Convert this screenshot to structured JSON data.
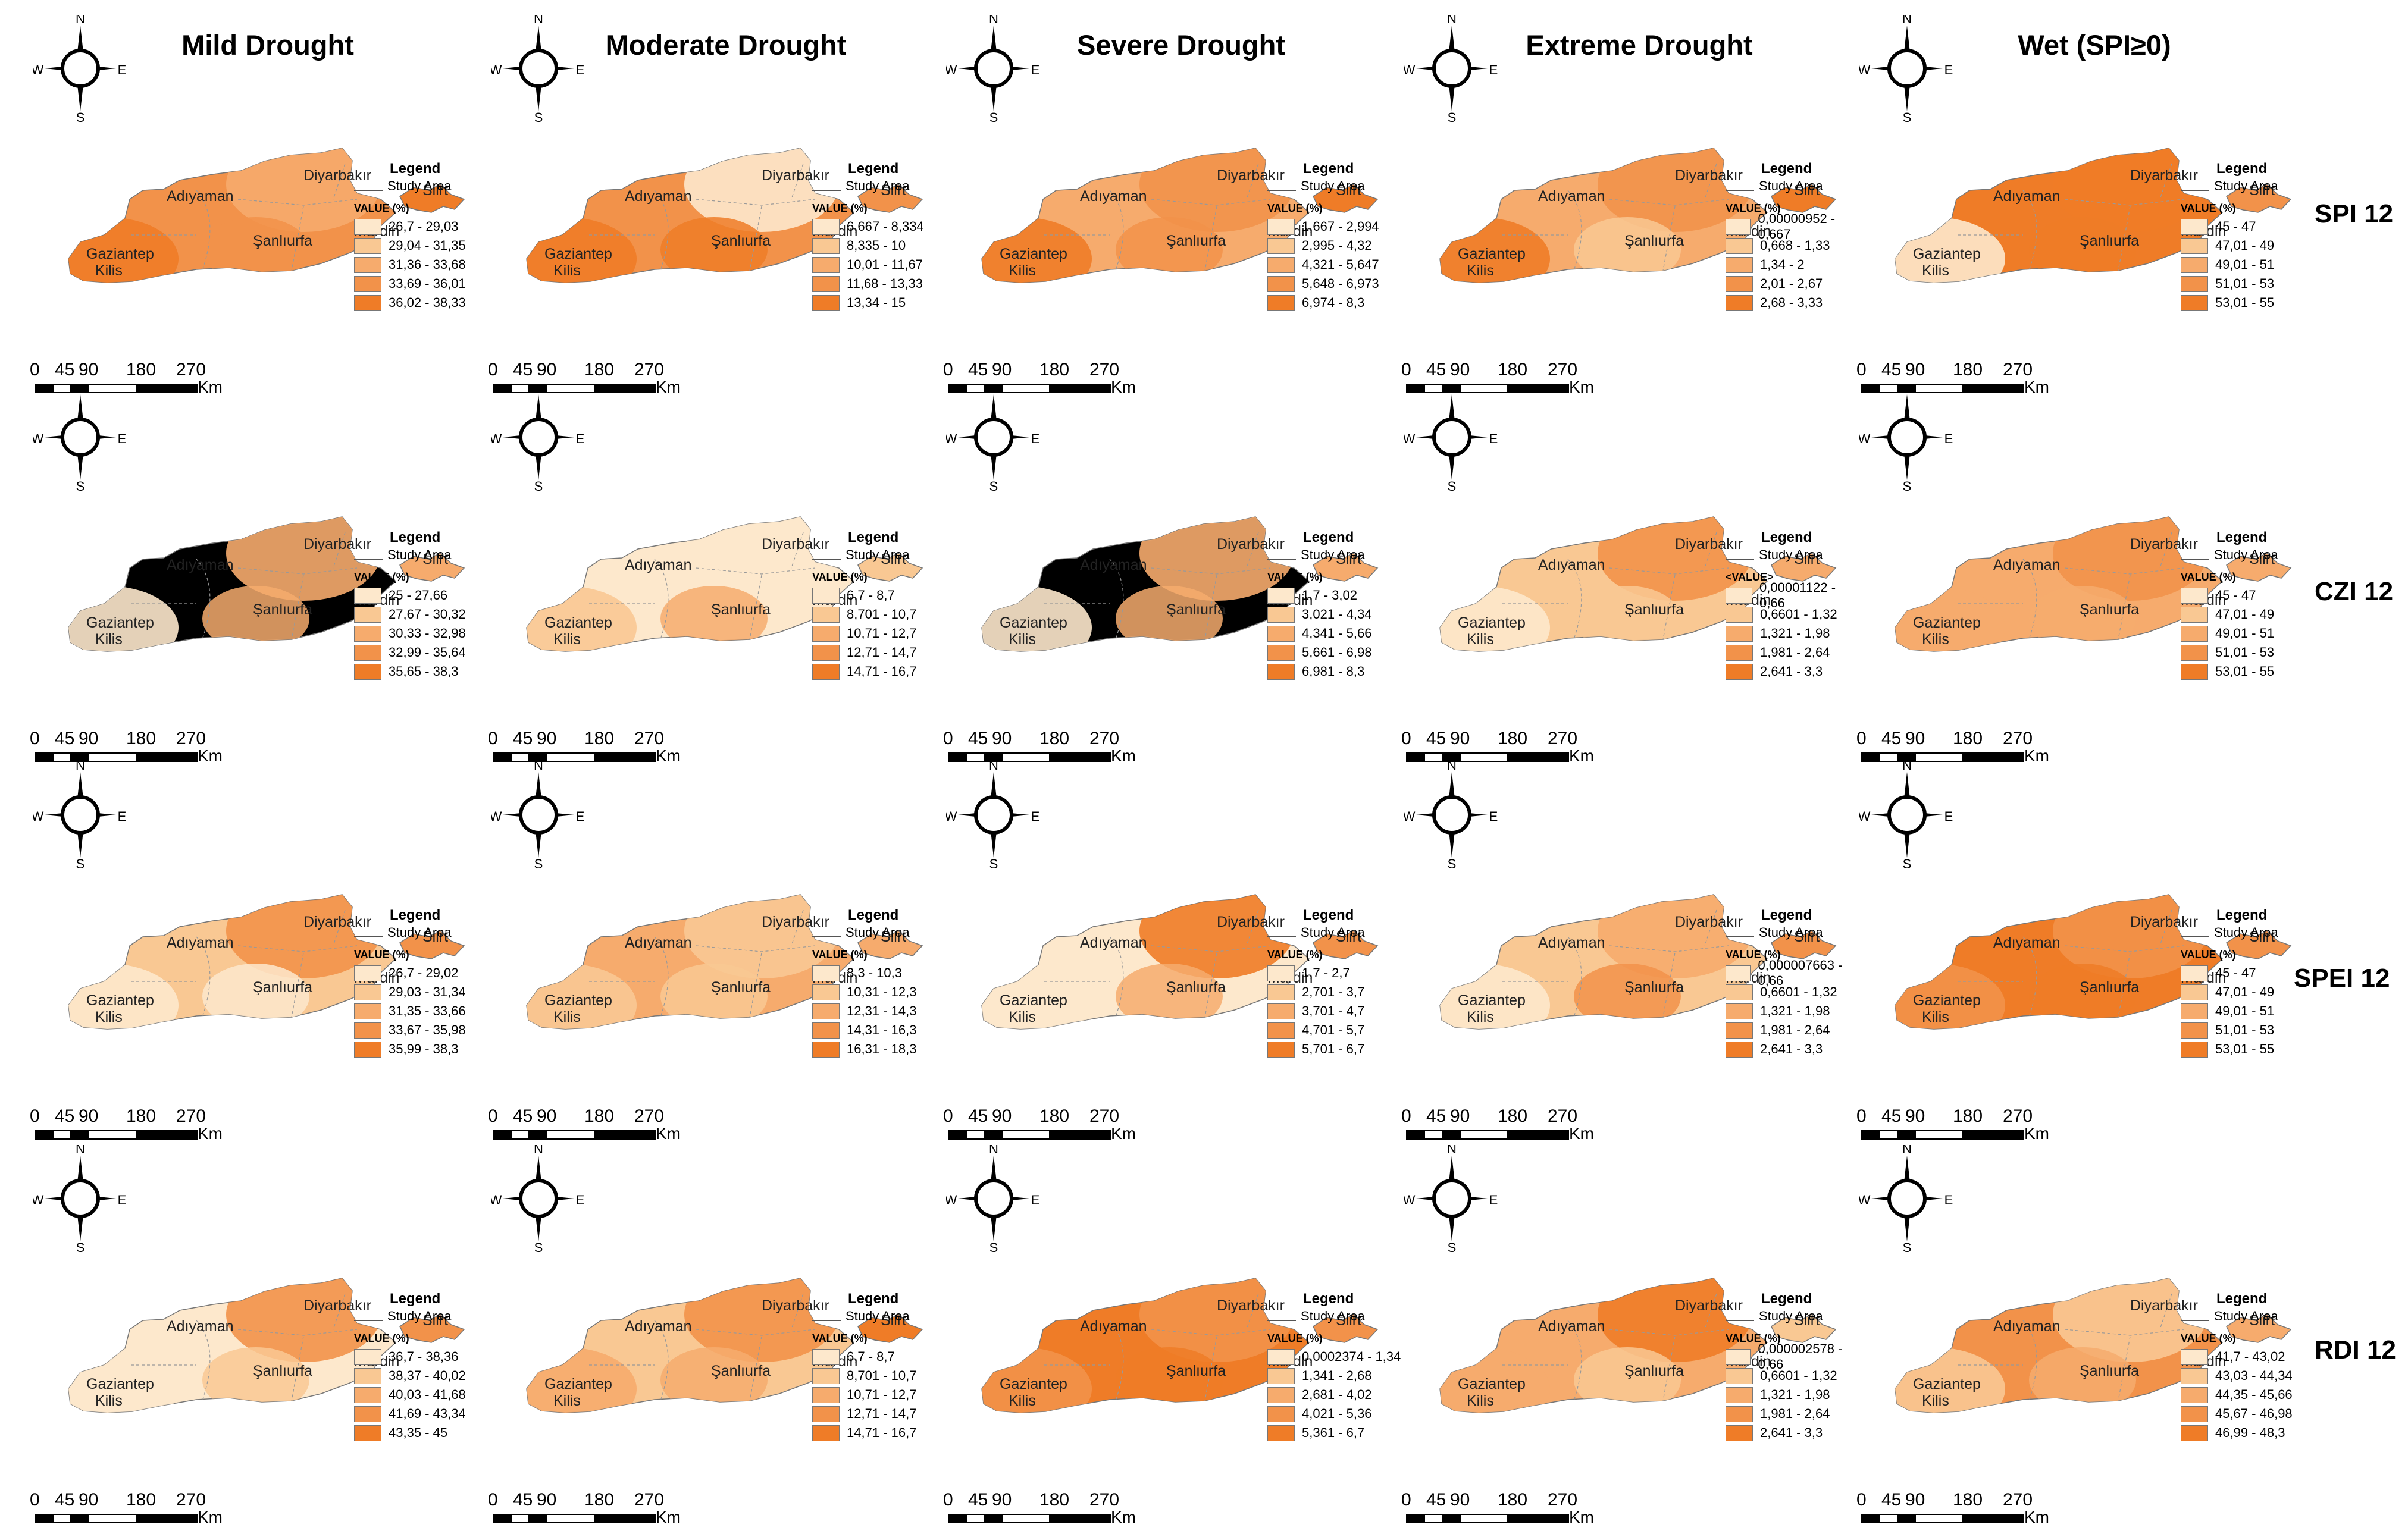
{
  "columns": [
    "Mild Drought",
    "Moderate Drought",
    "Severe Drought",
    "Extreme Drought",
    "Wet (SPI≥0)"
  ],
  "rows": [
    "SPI 12",
    "CZI 12",
    "SPEI 12",
    "RDI 12"
  ],
  "compass": {
    "n": "N",
    "s": "S",
    "e": "E",
    "w": "W"
  },
  "city_labels": [
    "Adıyaman",
    "Diyarbakır",
    "Siirt",
    "Gaziantep",
    "Kilis",
    "Şanlıurfa",
    "Mardin"
  ],
  "legend": {
    "title": "Legend",
    "study_area": "Study Area",
    "value_title": "VALUE (%)"
  },
  "scale_bar": {
    "ticks": [
      "0",
      "45",
      "90",
      "180",
      "270"
    ],
    "unit": "Km"
  },
  "colors": {
    "class_1": "#fde8cc",
    "class_2": "#f9c893",
    "class_3": "#f6ab6d",
    "class_4": "#f2924a",
    "class_5": "#ef7c27"
  },
  "panels": [
    {
      "row": "SPI 12",
      "column": "Mild Drought",
      "classes": [
        "26,7 - 29,03",
        "29,04 - 31,35",
        "31,36 - 33,68",
        "33,69 - 36,01",
        "36,02 - 38,33"
      ]
    },
    {
      "row": "SPI 12",
      "column": "Moderate Drought",
      "classes": [
        "6,667 - 8,334",
        "8,335 - 10",
        "10,01 - 11,67",
        "11,68 - 13,33",
        "13,34 - 15"
      ]
    },
    {
      "row": "SPI 12",
      "column": "Severe Drought",
      "classes": [
        "1,667 - 2,994",
        "2,995 - 4,32",
        "4,321 - 5,647",
        "5,648 - 6,973",
        "6,974 - 8,3"
      ]
    },
    {
      "row": "SPI 12",
      "column": "Extreme Drought",
      "classes": [
        "0,00000952 - 0,667",
        "0,668 - 1,33",
        "1,34 - 2",
        "2,01 - 2,67",
        "2,68 - 3,33"
      ]
    },
    {
      "row": "SPI 12",
      "column": "Wet (SPI≥0)",
      "classes": [
        "45 - 47",
        "47,01 - 49",
        "49,01 - 51",
        "51,01 - 53",
        "53,01 - 55"
      ]
    },
    {
      "row": "CZI 12",
      "column": "Mild Drought",
      "classes": [
        "25 - 27,66",
        "27,67 - 30,32",
        "30,33 - 32,98",
        "32,99 - 35,64",
        "35,65 - 38,3"
      ]
    },
    {
      "row": "CZI 12",
      "column": "Moderate Drought",
      "classes": [
        "6,7 - 8,7",
        "8,701 - 10,7",
        "10,71 - 12,7",
        "12,71 - 14,7",
        "14,71 - 16,7"
      ]
    },
    {
      "row": "CZI 12",
      "column": "Severe Drought",
      "classes": [
        "1,7 - 3,02",
        "3,021 - 4,34",
        "4,341 - 5,66",
        "5,661 - 6,98",
        "6,981 - 8,3"
      ]
    },
    {
      "row": "CZI 12",
      "column": "Extreme Drought",
      "value_title": "<VALUE>",
      "classes": [
        "0,00001122 - 0,66",
        "0,6601 - 1,32",
        "1,321 - 1,98",
        "1,981 - 2,64",
        "2,641 - 3,3"
      ]
    },
    {
      "row": "CZI 12",
      "column": "Wet (SPI≥0)",
      "classes": [
        "45 - 47",
        "47,01 - 49",
        "49,01 - 51",
        "51,01 - 53",
        "53,01 - 55"
      ]
    },
    {
      "row": "SPEI 12",
      "column": "Mild Drought",
      "classes": [
        "26,7 - 29,02",
        "29,03 - 31,34",
        "31,35 - 33,66",
        "33,67 - 35,98",
        "35,99 - 38,3"
      ]
    },
    {
      "row": "SPEI 12",
      "column": "Moderate Drought",
      "classes": [
        "8,3 - 10,3",
        "10,31 - 12,3",
        "12,31 - 14,3",
        "14,31 - 16,3",
        "16,31 - 18,3"
      ]
    },
    {
      "row": "SPEI 12",
      "column": "Severe Drought",
      "classes": [
        "1,7 - 2,7",
        "2,701 - 3,7",
        "3,701 - 4,7",
        "4,701 - 5,7",
        "5,701 - 6,7"
      ]
    },
    {
      "row": "SPEI 12",
      "column": "Extreme Drought",
      "classes": [
        "0,000007663 - 0,66",
        "0,6601 - 1,32",
        "1,321 - 1,98",
        "1,981 - 2,64",
        "2,641 - 3,3"
      ]
    },
    {
      "row": "SPEI 12",
      "column": "Wet (SPI≥0)",
      "classes": [
        "45 - 47",
        "47,01 - 49",
        "49,01 - 51",
        "51,01 - 53",
        "53,01 - 55"
      ]
    },
    {
      "row": "RDI 12",
      "column": "Mild Drought",
      "classes": [
        "36,7 - 38,36",
        "38,37 - 40,02",
        "40,03 - 41,68",
        "41,69 - 43,34",
        "43,35 - 45"
      ]
    },
    {
      "row": "RDI 12",
      "column": "Moderate Drought",
      "classes": [
        "6,7 - 8,7",
        "8,701 - 10,7",
        "10,71 - 12,7",
        "12,71 - 14,7",
        "14,71 - 16,7"
      ]
    },
    {
      "row": "RDI 12",
      "column": "Severe Drought",
      "classes": [
        "0,0002374 - 1,34",
        "1,341 - 2,68",
        "2,681 - 4,02",
        "4,021 - 5,36",
        "5,361 - 6,7"
      ]
    },
    {
      "row": "RDI 12",
      "column": "Extreme Drought",
      "classes": [
        "0,000002578 - 0,66",
        "0,6601 - 1,32",
        "1,321 - 1,98",
        "1,981 - 2,64",
        "2,641 - 3,3"
      ]
    },
    {
      "row": "RDI 12",
      "column": "Wet (SPI≥0)",
      "classes": [
        "41,7 - 43,02",
        "43,03 - 44,34",
        "44,35 - 45,66",
        "45,67 - 46,98",
        "46,99 - 48,3"
      ]
    }
  ]
}
